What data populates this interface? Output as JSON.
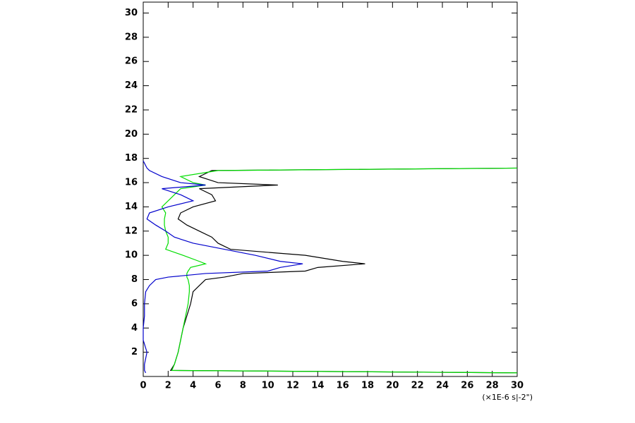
{
  "chart_data": {
    "type": "line",
    "x_axis_label": "(×1E-6 s|-2\")",
    "y": [
      0.3,
      0.5,
      1,
      2,
      3,
      4,
      5,
      6,
      7,
      7.5,
      8,
      8.2,
      8.5,
      8.7,
      9,
      9.3,
      9.5,
      10,
      10.5,
      11,
      11.5,
      12,
      12.5,
      13,
      13.5,
      14,
      14.5,
      15,
      15.5,
      15.8,
      16,
      16.5,
      17,
      17.2,
      17.8
    ],
    "series": [
      {
        "color": "#000000",
        "values": [
          30,
          2.2,
          2.5,
          2.8,
          3,
          3.2,
          3.5,
          3.8,
          4,
          4.5,
          5,
          6.5,
          8,
          13,
          14,
          17.8,
          16,
          13,
          7,
          6,
          5.5,
          4.5,
          3.5,
          2.8,
          3,
          4,
          5.8,
          5.5,
          4.5,
          10.8,
          6,
          4.5,
          5.5,
          30,
          null
        ]
      },
      {
        "color": "#00dd00",
        "values": [
          30,
          2.3,
          2.5,
          2.8,
          3,
          3.2,
          3.4,
          3.6,
          3.7,
          3.7,
          3.6,
          3.5,
          3.5,
          3.6,
          3.8,
          5,
          4.5,
          3.2,
          1.8,
          2,
          2,
          1.8,
          1.7,
          1.7,
          1.8,
          1.5,
          2,
          2.5,
          3,
          5,
          4,
          3,
          6,
          30,
          null
        ]
      },
      {
        "color": "#0000cc",
        "values": [
          0.2,
          0.1,
          0.1,
          0.3,
          0,
          0,
          0.1,
          0.1,
          0.2,
          0.5,
          1,
          2,
          5,
          10,
          11,
          12.8,
          11,
          9,
          6.5,
          4,
          2.5,
          1.8,
          1,
          0.3,
          0.5,
          2,
          4,
          3,
          1.5,
          5,
          3,
          1.5,
          0.5,
          0.3,
          0
        ]
      }
    ],
    "xlim": [
      0,
      30
    ],
    "xticks": [
      0,
      2,
      4,
      6,
      8,
      10,
      12,
      14,
      16,
      18,
      20,
      22,
      24,
      26,
      28,
      30
    ],
    "ylim": [
      0,
      30.9
    ],
    "yticks": [
      2,
      4,
      6,
      8,
      10,
      12,
      14,
      16,
      18,
      20,
      22,
      24,
      26,
      28,
      30
    ]
  }
}
